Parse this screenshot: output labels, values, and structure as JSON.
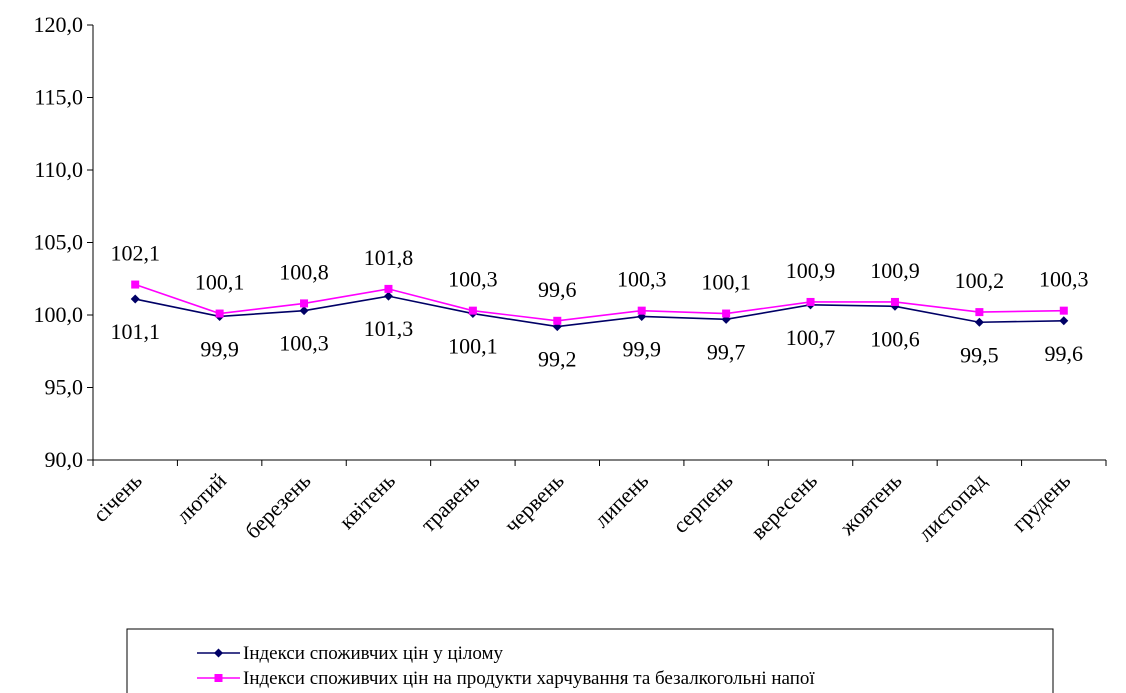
{
  "chart_data": {
    "type": "line",
    "categories": [
      "січень",
      "лютий",
      "березень",
      "квітень",
      "травень",
      "червень",
      "липень",
      "серпень",
      "вересень",
      "жовтень",
      "листопад",
      "грудень"
    ],
    "y_ticks": [
      "90,0",
      "95,0",
      "100,0",
      "105,0",
      "110,0",
      "115,0",
      "120,0"
    ],
    "ylim": [
      90,
      120
    ],
    "y_step": 5,
    "grid": false,
    "legend_position": "bottom",
    "series": [
      {
        "name": "Індекси споживчих цін у цілому",
        "color": "#000066",
        "marker": "diamond",
        "values": [
          101.1,
          99.9,
          100.3,
          101.3,
          100.1,
          99.2,
          99.9,
          99.7,
          100.7,
          100.6,
          99.5,
          99.6
        ],
        "labels": [
          "101,1",
          "99,9",
          "100,3",
          "101,3",
          "100,1",
          "99,2",
          "99,9",
          "99,7",
          "100,7",
          "100,6",
          "99,5",
          "99,6"
        ]
      },
      {
        "name": "Індекси споживчих цін на продукти харчування та безалкогольні напої",
        "color": "#ff00ff",
        "marker": "square",
        "values": [
          102.1,
          100.1,
          100.8,
          101.8,
          100.3,
          99.6,
          100.3,
          100.1,
          100.9,
          100.9,
          100.2,
          100.3
        ],
        "labels": [
          "102,1",
          "100,1",
          "100,8",
          "101,8",
          "100,3",
          "99,6",
          "100,3",
          "100,1",
          "100,9",
          "100,9",
          "100,2",
          "100,3"
        ]
      }
    ]
  }
}
